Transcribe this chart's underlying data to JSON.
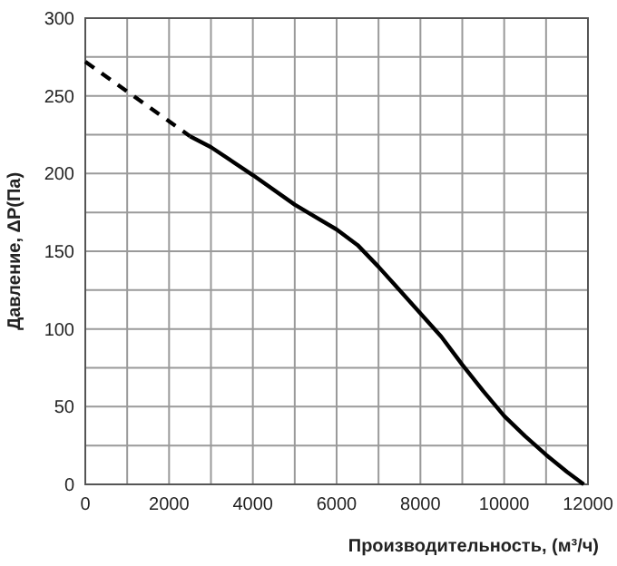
{
  "chart_data": {
    "type": "line",
    "xlabel": "Производительность, (м³/ч)",
    "ylabel": "Давление, ΔP(Па)",
    "xlim": [
      0,
      12000
    ],
    "ylim": [
      0,
      300
    ],
    "xticks": [
      0,
      {
        "value": 1000,
        "label": null
      },
      2000,
      {
        "value": 3000,
        "label": null
      },
      4000,
      {
        "value": 5000,
        "label": null
      },
      6000,
      {
        "value": 7000,
        "label": null
      },
      8000,
      {
        "value": 9000,
        "label": null
      },
      10000,
      {
        "value": 11000,
        "label": null
      },
      12000
    ],
    "yticks": [
      0,
      {
        "value": 25,
        "label": null
      },
      50,
      {
        "value": 75,
        "label": null
      },
      100,
      {
        "value": 125,
        "label": null
      },
      150,
      {
        "value": 175,
        "label": null
      },
      200,
      {
        "value": 225,
        "label": null
      },
      250,
      {
        "value": 275,
        "label": null
      },
      300
    ],
    "grid": true,
    "series": [
      {
        "color": "#000000",
        "line_style": "dashed",
        "x": [
          0,
          2500
        ],
        "values": [
          272,
          224
        ]
      },
      {
        "color": "#000000",
        "line_style": "solid",
        "x": [
          2500,
          3000,
          4000,
          5000,
          5500,
          6000,
          6500,
          7000,
          7500,
          8000,
          8500,
          9000,
          9500,
          10000,
          10500,
          11000,
          11500,
          11900
        ],
        "values": [
          224,
          217,
          199,
          180,
          172,
          164,
          154,
          140,
          125,
          110,
          95,
          77,
          60,
          44,
          31,
          19,
          8,
          0
        ]
      }
    ]
  }
}
